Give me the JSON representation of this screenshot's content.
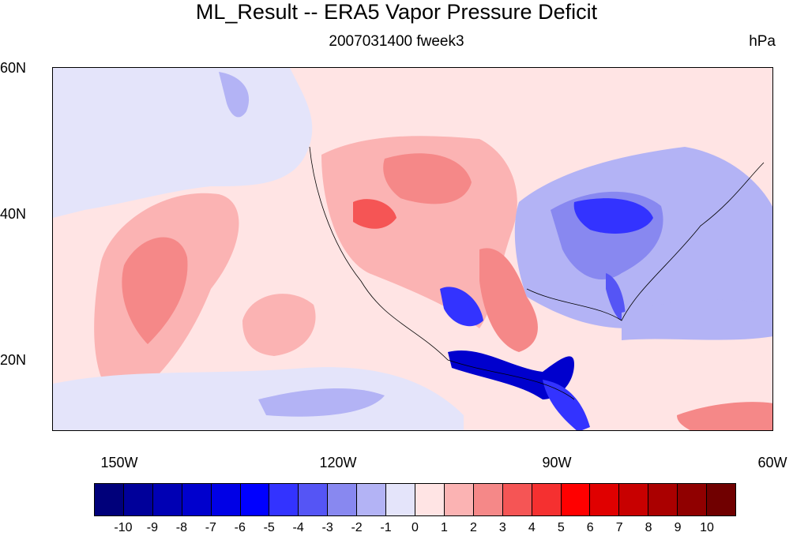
{
  "figure": {
    "title": "ML_Result -- ERA5 Vapor Pressure Deficit",
    "subtitle": "2007031400 fweek3",
    "units": "hPa"
  },
  "map": {
    "lat_labels": [
      "60N",
      "40N",
      "20N"
    ],
    "lon_labels": [
      "150W",
      "120W",
      "90W",
      "60W"
    ],
    "lat_range": [
      10,
      60
    ],
    "lon_range": [
      -159,
      -60
    ]
  },
  "legend": {
    "labels": [
      "-10",
      "-9",
      "-8",
      "-7",
      "-6",
      "-5",
      "-4",
      "-3",
      "-2",
      "-1",
      "0",
      "1",
      "2",
      "3",
      "4",
      "5",
      "6",
      "7",
      "8",
      "9",
      "10"
    ],
    "colors": [
      "#00007a",
      "#00009a",
      "#0000b4",
      "#0000cd",
      "#0000e6",
      "#0000ff",
      "#3333ff",
      "#5555f5",
      "#8888f0",
      "#b3b3f5",
      "#e4e4fa",
      "#ffe4e4",
      "#fbb3b3",
      "#f58888",
      "#f55555",
      "#f53030",
      "#ff0000",
      "#e00000",
      "#c80000",
      "#aa0000",
      "#900000",
      "#700000"
    ]
  }
}
